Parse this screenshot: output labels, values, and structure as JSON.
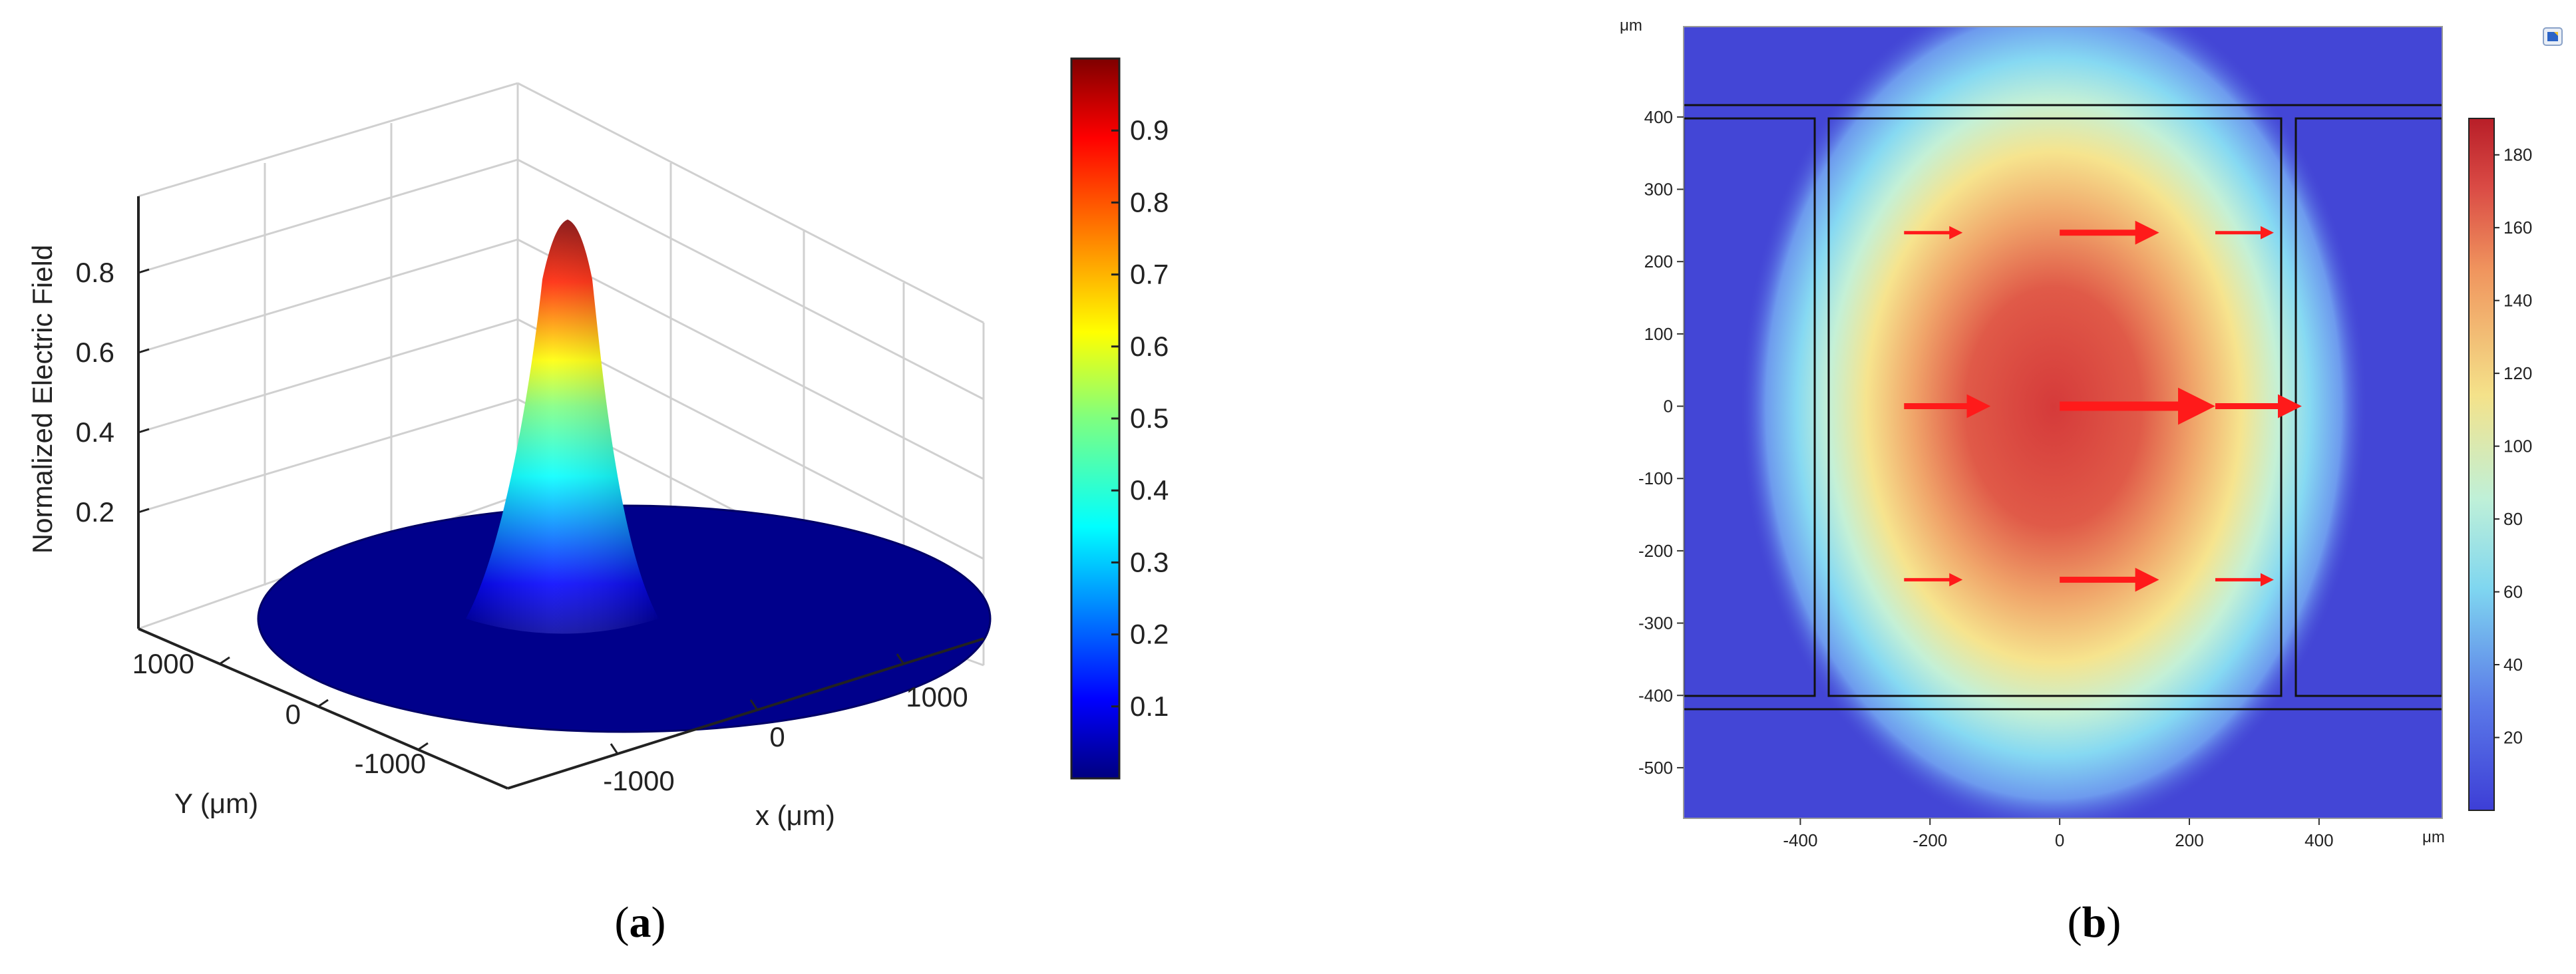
{
  "panels": {
    "a": {
      "caption_open": "(",
      "caption_letter": "a",
      "caption_close": ")"
    },
    "b": {
      "caption_open": "(",
      "caption_letter": "b",
      "caption_close": ")"
    }
  },
  "chart_data": [
    {
      "type": "surface",
      "title": "",
      "zlabel": "Normalized Electric Field",
      "xlabel": "x (μm)",
      "ylabel": "Y (μm)",
      "x_ticks": [
        "-1000",
        "0",
        "1000"
      ],
      "y_ticks": [
        "-1000",
        "0",
        "1000"
      ],
      "z_ticks": [
        "0.2",
        "0.4",
        "0.6",
        "0.8"
      ],
      "zlim": [
        0,
        1
      ],
      "x_range": [
        -1400,
        1400
      ],
      "y_range": [
        -1400,
        1400
      ],
      "peak_value": 0.93,
      "domain": "circular, radius 1400 μm",
      "grid": true,
      "colormap": "jet",
      "colorbar": {
        "ticks": [
          "0.1",
          "0.2",
          "0.3",
          "0.4",
          "0.5",
          "0.6",
          "0.7",
          "0.8",
          "0.9"
        ],
        "range": [
          0,
          1
        ],
        "position": "right"
      }
    },
    {
      "type": "heatmap",
      "title": "",
      "y_unit": "μm",
      "x_unit": "μm",
      "x_ticks": [
        "-400",
        "-200",
        "0",
        "200",
        "400"
      ],
      "y_ticks": [
        "400",
        "300",
        "200",
        "100",
        "0",
        "-100",
        "-200",
        "-300",
        "-400",
        "-500"
      ],
      "xlim": [
        -580,
        590
      ],
      "ylim": [
        -570,
        525
      ],
      "hotspot_center": [
        0,
        0
      ],
      "max_value": 190,
      "colormap": "rainbow",
      "colorbar": {
        "ticks": [
          "20",
          "40",
          "60",
          "80",
          "100",
          "120",
          "140",
          "160",
          "180"
        ],
        "range": [
          0,
          190
        ],
        "position": "right"
      },
      "boundaries": {
        "horizontal_lines_y": [
          420,
          -420
        ],
        "center_box": {
          "x": [
            -355,
            355
          ],
          "y": [
            -400,
            400
          ]
        },
        "side_boxes": [
          {
            "x": [
              -580,
              -375
            ],
            "y": [
              -400,
              400
            ]
          },
          {
            "x": [
              375,
              590
            ],
            "y": [
              -400,
              400
            ]
          }
        ]
      },
      "arrows": [
        {
          "x": -240,
          "y": 240,
          "length": 80,
          "size": "small"
        },
        {
          "x": 0,
          "y": 240,
          "length": 130,
          "size": "medium"
        },
        {
          "x": 240,
          "y": 240,
          "length": 80,
          "size": "small"
        },
        {
          "x": -240,
          "y": 0,
          "length": 110,
          "size": "medium"
        },
        {
          "x": 0,
          "y": 0,
          "length": 200,
          "size": "large"
        },
        {
          "x": 240,
          "y": 0,
          "length": 110,
          "size": "medium"
        },
        {
          "x": -240,
          "y": -240,
          "length": 80,
          "size": "small"
        },
        {
          "x": 0,
          "y": -240,
          "length": 130,
          "size": "medium"
        },
        {
          "x": 240,
          "y": -240,
          "length": 80,
          "size": "small"
        }
      ],
      "arrow_color": "#ff1a1a"
    }
  ]
}
